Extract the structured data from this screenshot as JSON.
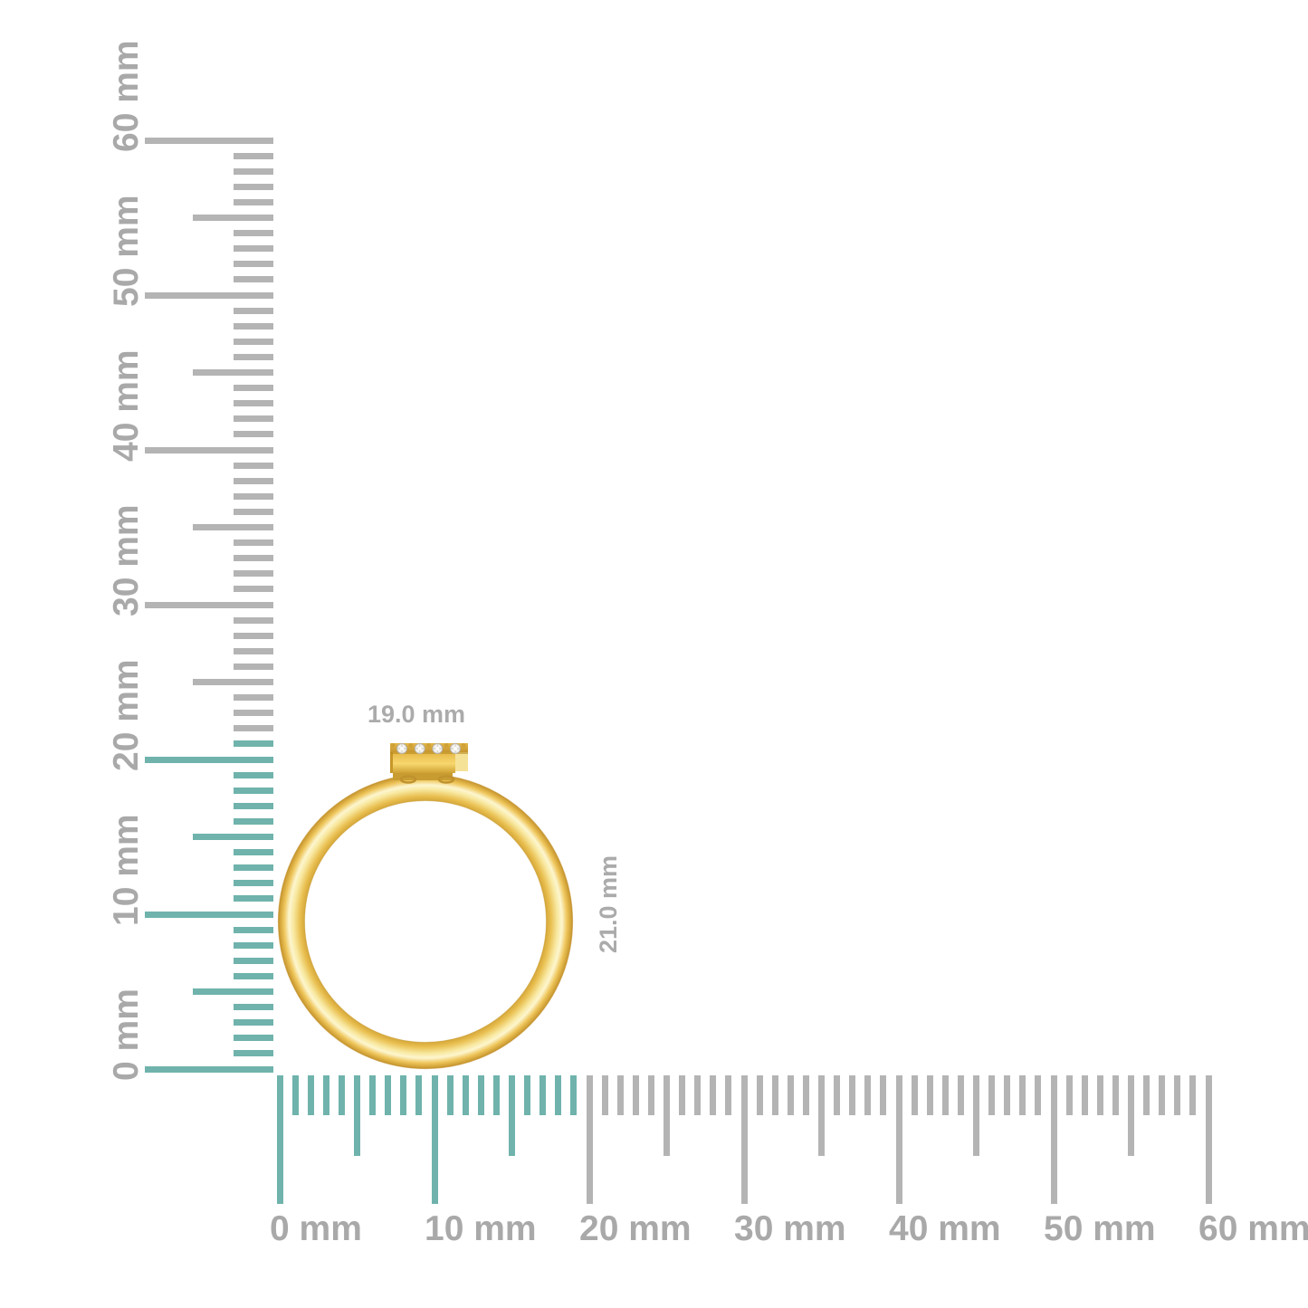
{
  "figure_title": "ring-size-measurement-figure",
  "background": "#ffffff",
  "measurements": {
    "width_label": "19.0 mm",
    "height_label": "21.0 mm"
  },
  "rulers": {
    "unit": "mm",
    "min_mm": 0,
    "max_mm": 60,
    "minor_step_mm": 1,
    "medium_step_mm": 5,
    "major_step_mm": 10,
    "major_labels": [
      "0 mm",
      "10 mm",
      "20 mm",
      "30 mm",
      "40 mm",
      "50 mm",
      "60 mm"
    ],
    "vertical": {
      "side": "left",
      "highlight_from_mm": 0,
      "highlight_to_mm": 21
    },
    "horizontal": {
      "side": "bottom",
      "highlight_from_mm": 0,
      "highlight_to_mm": 19
    }
  },
  "ring": {
    "outer_width_mm": 19.0,
    "overall_height_mm": 21.0,
    "diamond_count": 4
  },
  "colors": {
    "highlight_teal": "#6fb3ac",
    "tick_gray": "#b4b4b4",
    "label_gray": "#a9a9a9",
    "gold_dark": "#bf8e2a",
    "gold_mid": "#eec254",
    "gold_highlight": "#fdf5cc"
  }
}
